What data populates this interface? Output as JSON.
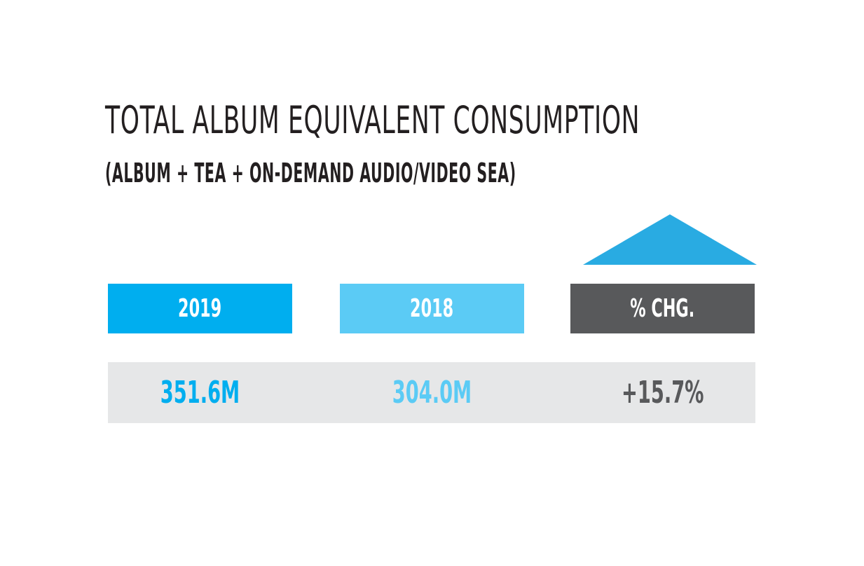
{
  "title": "TOTAL ALBUM EQUIVALENT CONSUMPTION",
  "subtitle": "(ALBUM + TEA + ON-DEMAND AUDIO/VIDEO SEA)",
  "headers": {
    "year_2019": "2019",
    "year_2018": "2018",
    "pct_change": "% CHG."
  },
  "values": {
    "year_2019": "351.6M",
    "year_2018": "304.0M",
    "pct_change": "+15.7%"
  },
  "trend_indicator": "up-arrow",
  "colors": {
    "year_2019": "#00aeef",
    "year_2018": "#5bcbf5",
    "pct_change_header": "#58595b",
    "pct_change_value": "#58595b",
    "arrow": "#29abe2",
    "row_background": "#e6e7e8",
    "title": "#231f20"
  }
}
